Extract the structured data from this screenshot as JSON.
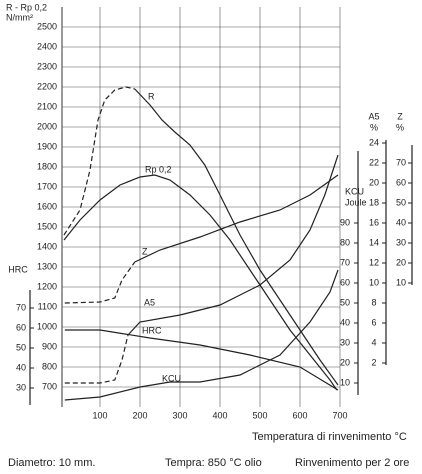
{
  "chart_data": {
    "type": "line",
    "ylabel": "R - Rp 0,2",
    "yunit": "N/mm²",
    "xlabel": "Temperatura di rinvenimento °C",
    "notes": [
      "Diametro: 10 mm.",
      "Tempra: 850 °C olio",
      "Rinvenimento per 2 ore"
    ],
    "xlim": [
      0,
      700
    ],
    "xticks": [
      100,
      200,
      300,
      400,
      500,
      600,
      700
    ],
    "ylim": [
      600,
      2600
    ],
    "yticks": [
      700,
      800,
      900,
      1000,
      1100,
      1200,
      1300,
      1400,
      1500,
      1600,
      1700,
      1800,
      1900,
      2000,
      2100,
      2200,
      2300,
      2400,
      2500
    ],
    "grid": true,
    "hrc": {
      "label": "HRC",
      "lim": [
        21.5,
        79
      ],
      "ticks": [
        30,
        40,
        50,
        60,
        70
      ]
    },
    "kcu": {
      "label": "KCU",
      "unit": "Joule",
      "lim": [
        4,
        126
      ],
      "ticks": [
        10,
        20,
        30,
        40,
        50,
        60,
        70,
        80,
        90
      ]
    },
    "a5": {
      "label": "A5",
      "unit": "%",
      "lim": [
        1.8,
        24.3
      ],
      "ticks": [
        2,
        4,
        6,
        8,
        10,
        12,
        14,
        16,
        18,
        20,
        22,
        24
      ]
    },
    "z": {
      "label": "Z",
      "unit": "%",
      "lim": [
        9,
        79
      ],
      "ticks": [
        10,
        20,
        30,
        40,
        50,
        60,
        70
      ]
    },
    "series": [
      {
        "name": "R",
        "color": "#222",
        "axis": "y",
        "dashed_to": 187,
        "x": [
          10,
          50,
          75,
          95,
          112,
          137,
          165,
          187,
          225,
          255,
          287,
          325,
          362,
          400,
          450,
          500,
          550,
          600,
          650,
          695
        ],
        "values": [
          1460,
          1585,
          1785,
          2035,
          2135,
          2185,
          2200,
          2190,
          2110,
          2035,
          1975,
          1910,
          1810,
          1660,
          1460,
          1285,
          1135,
          985,
          835,
          710
        ]
      },
      {
        "name": "Rp 0,2",
        "color": "#222",
        "axis": "y",
        "x": [
          10,
          50,
          100,
          150,
          200,
          237,
          275,
          325,
          375,
          425,
          475,
          525,
          575,
          625,
          675,
          692
        ],
        "values": [
          1435,
          1535,
          1635,
          1710,
          1750,
          1760,
          1735,
          1660,
          1560,
          1435,
          1285,
          1135,
          985,
          860,
          735,
          685
        ]
      },
      {
        "name": "Z",
        "color": "#222",
        "axis": "z",
        "dashed_to": 187,
        "x": [
          12,
          100,
          137,
          155,
          187,
          250,
          350,
          450,
          550,
          625,
          695
        ],
        "values": [
          0,
          0.5,
          2.5,
          11.5,
          20.5,
          26.5,
          33,
          40.5,
          46.5,
          54,
          64
        ]
      },
      {
        "name": "A5",
        "color": "#222",
        "axis": "a5",
        "dashed_to": 170,
        "x": [
          12,
          100,
          137,
          155,
          170,
          200,
          300,
          400,
          500,
          575,
          625,
          662,
          695
        ],
        "values": [
          0,
          0,
          0.3,
          2.3,
          4.8,
          6.1,
          6.8,
          7.8,
          9.8,
          12.3,
          15.3,
          18.8,
          22.8
        ]
      },
      {
        "name": "HRC",
        "color": "#222",
        "axis": "hrc",
        "x": [
          12,
          100,
          225,
          350,
          475,
          600,
          695
        ],
        "values": [
          59,
          59,
          55,
          51.5,
          46.5,
          40.5,
          29
        ]
      },
      {
        "name": "KCU",
        "color": "#222",
        "axis": "kcu",
        "x": [
          12,
          100,
          200,
          275,
          350,
          450,
          550,
          625,
          675,
          695
        ],
        "values": [
          1.5,
          3,
          8,
          10.5,
          10.5,
          14,
          24,
          40.5,
          55.5,
          66.5
        ]
      }
    ]
  }
}
